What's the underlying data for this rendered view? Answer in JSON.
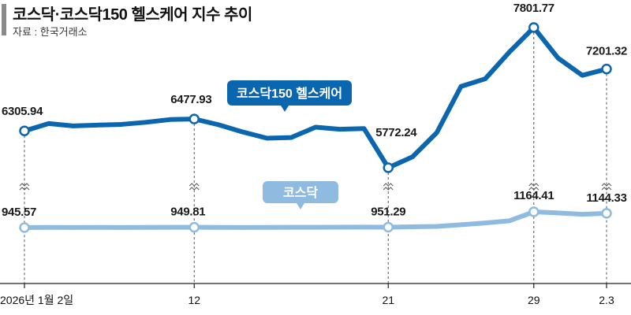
{
  "header": {
    "title": "코스닥·코스닥150 헬스케어 지수 추이",
    "source": "자료 : 한국거래소"
  },
  "colors": {
    "healthcare": "#0b66b0",
    "kosdaq": "#8fbbe0",
    "title_bar": "#8a8a8a",
    "guide": "#555555"
  },
  "chart_data": {
    "type": "line",
    "x_ticks": [
      "2026년 1월 2일",
      "12",
      "21",
      "29",
      "2.3"
    ],
    "series": [
      {
        "name": "코스닥150 헬스케어",
        "points": [
          6305.94,
          6412,
          6378,
          6390,
          6400,
          6430,
          6470,
          6477.93,
          6395,
          6290,
          6200,
          6210,
          6360,
          6330,
          6340,
          5772.24,
          5930,
          6280,
          6950,
          7060,
          7450,
          7801.77,
          7360,
          7110,
          7201.32
        ],
        "labels": [
          {
            "index": 0,
            "text": "6305.94"
          },
          {
            "index": 7,
            "text": "6477.93"
          },
          {
            "index": 15,
            "text": "5772.24"
          },
          {
            "index": 21,
            "text": "7801.77"
          },
          {
            "index": 24,
            "text": "7201.32"
          }
        ]
      },
      {
        "name": "코스닥",
        "points": [
          945.57,
          948,
          947,
          948,
          947,
          948,
          949,
          949.81,
          948,
          947,
          948,
          949,
          950,
          951,
          952,
          951.29,
          956,
          962,
          985,
          1010,
          1040,
          1164.41,
          1150,
          1130,
          1144.33
        ],
        "labels": [
          {
            "index": 0,
            "text": "945.57"
          },
          {
            "index": 7,
            "text": "949.81"
          },
          {
            "index": 15,
            "text": "951.29"
          },
          {
            "index": 21,
            "text": "1164.41"
          },
          {
            "index": 24,
            "text": "1144.33"
          }
        ]
      }
    ]
  }
}
